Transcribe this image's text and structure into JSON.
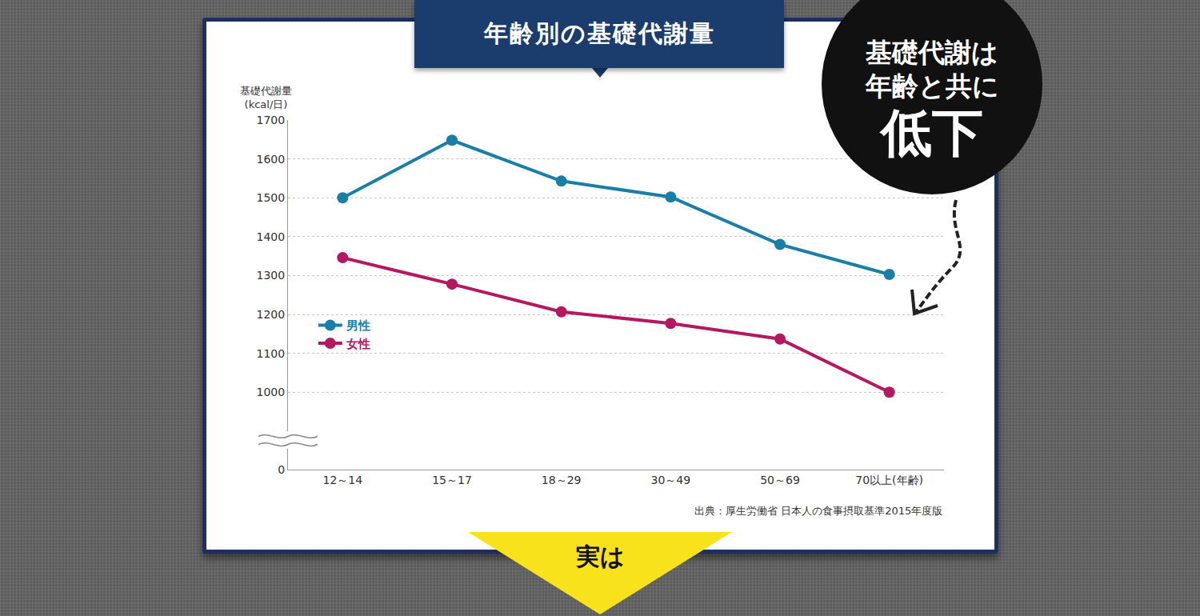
{
  "title": "年齢別の基礎代謝量",
  "callout": [
    "基礎代謝は",
    "年齢と共に",
    "低下"
  ],
  "footer_banner": "実は",
  "chart_data": {
    "type": "line",
    "y_label": "基礎代謝量\n(kcal/日)",
    "categories": [
      "12～14",
      "15～17",
      "18～29",
      "30～49",
      "50～69",
      "70以上(年齢)"
    ],
    "series": [
      {
        "name": "男性",
        "color": "#1a7fa6",
        "marker": "circle",
        "values": [
          1500,
          1648,
          1543,
          1502,
          1380,
          1303
        ]
      },
      {
        "name": "女性",
        "color": "#b5185f",
        "marker": "circle",
        "values": [
          1346,
          1278,
          1207,
          1177,
          1137,
          1000
        ]
      }
    ],
    "ylim": [
      0,
      1700
    ],
    "yticks": [
      0,
      1000,
      1100,
      1200,
      1300,
      1400,
      1500,
      1600,
      1700
    ],
    "grid": true,
    "legend": "left",
    "source": "出典：厚生労働省 日本人の食事摂取基準2015年度版"
  }
}
